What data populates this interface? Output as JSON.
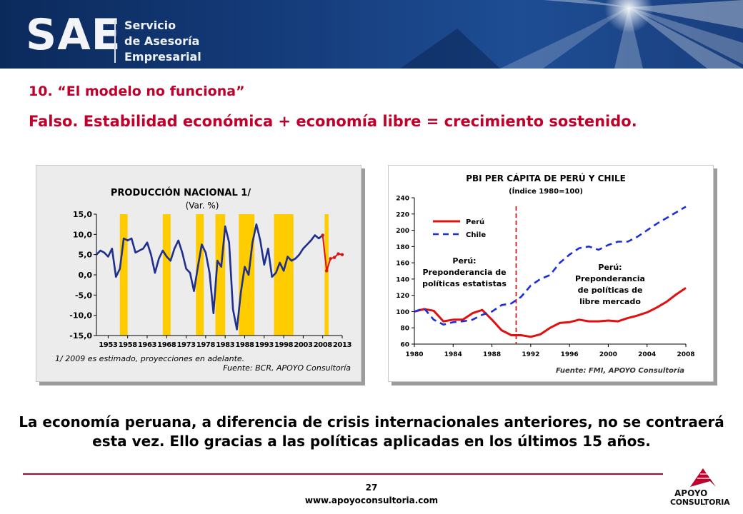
{
  "header": {
    "logo_text": "SAE",
    "logo_lines": [
      "Servicio",
      "de Asesoría",
      "Empresarial"
    ]
  },
  "heading": "10. “El modelo no funciona”",
  "subheading": "Falso. Estabilidad económica + economía libre = crecimiento sostenido.",
  "bottom_text": "La economía peruana, a diferencia de crisis internacionales anteriores, no se contraerá esta vez. Ello gracias a las políticas aplicadas en los últimos 15 años.",
  "page_number": "27",
  "website": "www.apoyoconsultoria.com",
  "apoyo_logo": {
    "line1": "APOYO",
    "line2": "CONSULTORIA"
  },
  "colors": {
    "accent": "#c0002a",
    "navy": "#1f2f8c",
    "bars": "#ffcc00",
    "red_line": "#e01010"
  },
  "chart_data": [
    {
      "type": "line",
      "title": "PRODUCCIÓN NACIONAL 1/",
      "subtitle": "(Var. %)",
      "footnote": "1/ 2009 es estimado, proyecciones en adelante.",
      "source": "Fuente: BCR, APOYO Consultoría",
      "ylim": [
        -15,
        15
      ],
      "yticks": [
        "15,0",
        "10,0",
        "5,0",
        "0,0",
        "-5,0",
        "-10,0",
        "-15,0"
      ],
      "ytick_values": [
        15,
        10,
        5,
        0,
        -5,
        -10,
        -15
      ],
      "xlim": [
        1950,
        2013
      ],
      "xticks": [
        "1953",
        "1958",
        "1963",
        "1968",
        "1973",
        "1978",
        "1983",
        "1988",
        "1993",
        "1998",
        "2003",
        "2008",
        "2013"
      ],
      "xtick_values": [
        1953,
        1958,
        1963,
        1968,
        1973,
        1978,
        1983,
        1988,
        1993,
        1998,
        2003,
        2008,
        2013
      ],
      "shaded_periods": [
        [
          1956,
          1958
        ],
        [
          1967,
          1969
        ],
        [
          1975.5,
          1977.5
        ],
        [
          1980.5,
          1983
        ],
        [
          1986.5,
          1990.5
        ],
        [
          1995.5,
          2000.5
        ],
        [
          2008.5,
          2009.5
        ]
      ],
      "series": [
        {
          "color": "#1f2f8c",
          "x": [
            1950,
            1951,
            1952,
            1953,
            1954,
            1955,
            1956,
            1957,
            1958,
            1959,
            1960,
            1961,
            1962,
            1963,
            1964,
            1965,
            1966,
            1967,
            1968,
            1969,
            1970,
            1971,
            1972,
            1973,
            1974,
            1975,
            1976,
            1977,
            1978,
            1979,
            1980,
            1981,
            1982,
            1983,
            1984,
            1985,
            1986,
            1987,
            1988,
            1989,
            1990,
            1991,
            1992,
            1993,
            1994,
            1995,
            1996,
            1997,
            1998,
            1999,
            2000,
            2001,
            2002,
            2003,
            2004,
            2005,
            2006,
            2007,
            2008
          ],
          "y": [
            5.0,
            6.0,
            5.5,
            4.5,
            6.5,
            -0.5,
            1.5,
            9.0,
            8.5,
            9.0,
            5.5,
            6.0,
            6.5,
            8.0,
            5.0,
            0.5,
            4.0,
            6.0,
            4.5,
            3.5,
            6.5,
            8.5,
            5.5,
            1.5,
            0.5,
            -4.0,
            2.0,
            7.5,
            5.5,
            0.5,
            -9.5,
            3.5,
            2.0,
            12.0,
            8.0,
            -8.5,
            -13.5,
            -4.5,
            2.0,
            0.0,
            8.0,
            12.5,
            8.5,
            2.5,
            6.5,
            -0.5,
            0.5,
            3.0,
            1.0,
            4.5,
            3.5,
            4.0,
            5.0,
            6.5,
            7.5,
            8.5,
            9.8,
            9.0,
            9.8
          ]
        },
        {
          "color": "#e01010",
          "x": [
            2008,
            2009,
            2010,
            2011,
            2012,
            2013
          ],
          "y": [
            9.8,
            1.0,
            4.0,
            4.3,
            5.2,
            5.0
          ]
        }
      ]
    },
    {
      "type": "line",
      "title": "PBI PER CÁPITA DE PERÚ Y CHILE",
      "subtitle": "(Índice 1980=100)",
      "source": "Fuente: FMI, APOYO Consultoría",
      "ylim": [
        60,
        240
      ],
      "yticks": [
        60,
        80,
        100,
        120,
        140,
        160,
        180,
        200,
        220,
        240
      ],
      "xlim": [
        1980,
        2008
      ],
      "xticks": [
        1980,
        1984,
        1988,
        1992,
        1996,
        2000,
        2004,
        2008
      ],
      "vline_x": 1990.5,
      "legend_position": "top-left",
      "annotations": [
        {
          "text": [
            "Perú:",
            "Preponderancia de",
            "políticas estatistas"
          ]
        },
        {
          "text": [
            "Perú:",
            "Preponderancia",
            "de políticas de",
            "libre mercado"
          ]
        }
      ],
      "series": [
        {
          "name": "Perú",
          "color": "#e01010",
          "style": "solid",
          "x": [
            1980,
            1981,
            1982,
            1983,
            1984,
            1985,
            1986,
            1987,
            1988,
            1989,
            1990,
            1991,
            1992,
            1993,
            1994,
            1995,
            1996,
            1997,
            1998,
            1999,
            2000,
            2001,
            2002,
            2003,
            2004,
            2005,
            2006,
            2007,
            2008
          ],
          "y": [
            100,
            103,
            101,
            88,
            90,
            90,
            98,
            102,
            90,
            77,
            71,
            71,
            69,
            72,
            80,
            86,
            87,
            90,
            88,
            88,
            89,
            88,
            92,
            95,
            99,
            105,
            112,
            121,
            129
          ]
        },
        {
          "name": "Chile",
          "color": "#1a2fd8",
          "style": "dashed",
          "x": [
            1980,
            1981,
            1982,
            1983,
            1984,
            1985,
            1986,
            1987,
            1988,
            1989,
            1990,
            1991,
            1992,
            1993,
            1994,
            1995,
            1996,
            1997,
            1998,
            1999,
            2000,
            2001,
            2002,
            2003,
            2004,
            2005,
            2006,
            2007,
            2008
          ],
          "y": [
            100,
            104,
            90,
            84,
            87,
            88,
            90,
            96,
            100,
            108,
            110,
            118,
            132,
            140,
            145,
            160,
            170,
            178,
            180,
            176,
            182,
            186,
            186,
            192,
            200,
            208,
            215,
            222,
            229
          ]
        }
      ]
    }
  ]
}
